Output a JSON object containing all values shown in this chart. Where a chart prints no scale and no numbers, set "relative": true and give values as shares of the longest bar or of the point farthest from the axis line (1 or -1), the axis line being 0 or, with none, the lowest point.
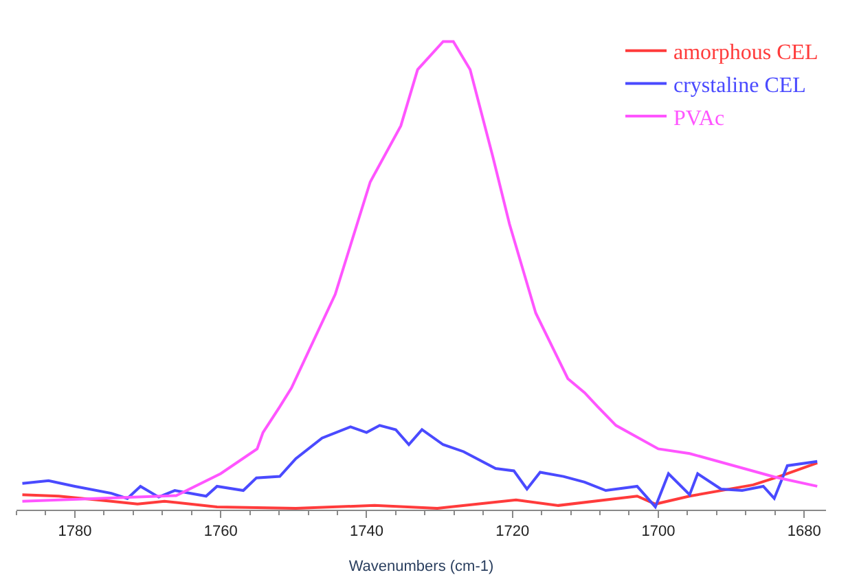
{
  "chart_data": {
    "type": "line",
    "relative": true,
    "xlabel": "Wavenumbers (cm-1)",
    "xlim": [
      1788,
      1677
    ],
    "xticks": [
      1780,
      1760,
      1740,
      1720,
      1700,
      1680
    ],
    "legend": "top right",
    "marker": "none",
    "line_style": "solid",
    "series": [
      {
        "name": "amorphous CEL",
        "color": "#ff3b3b",
        "x": [
          1787.2,
          1782.2,
          1775,
          1771.4,
          1767.7,
          1760.5,
          1749.7,
          1738.9,
          1730.3,
          1719.5,
          1713.7,
          1702.9,
          1700.4,
          1695.7,
          1687,
          1683.4,
          1678.2
        ],
        "values": [
          0.032,
          0.029,
          0.018,
          0.012,
          0.018,
          0.006,
          0.003,
          0.009,
          0.003,
          0.021,
          0.009,
          0.029,
          0.012,
          0.029,
          0.053,
          0.071,
          0.1
        ]
      },
      {
        "name": "crystaline CEL",
        "color": "#4a4aff",
        "x": [
          1787.2,
          1783.6,
          1780,
          1775,
          1772.8,
          1771,
          1768.5,
          1766.3,
          1762,
          1760.5,
          1756.9,
          1755.1,
          1751.9,
          1749.7,
          1746.1,
          1742.2,
          1740,
          1738.2,
          1736,
          1734.2,
          1732.4,
          1729.5,
          1726.7,
          1722.3,
          1719.8,
          1718,
          1716.2,
          1713,
          1710.1,
          1707.2,
          1702.9,
          1700.4,
          1698.6,
          1695.7,
          1694.6,
          1691.4,
          1688.5,
          1685.6,
          1684.1,
          1682.3,
          1678.2
        ],
        "values": [
          0.056,
          0.062,
          0.05,
          0.035,
          0.024,
          0.05,
          0.027,
          0.041,
          0.029,
          0.05,
          0.041,
          0.068,
          0.071,
          0.109,
          0.153,
          0.177,
          0.165,
          0.18,
          0.171,
          0.139,
          0.171,
          0.139,
          0.124,
          0.088,
          0.083,
          0.044,
          0.08,
          0.071,
          0.059,
          0.041,
          0.05,
          0.006,
          0.077,
          0.032,
          0.077,
          0.044,
          0.041,
          0.05,
          0.024,
          0.094,
          0.103
        ]
      },
      {
        "name": "PVAc",
        "color": "#ff55ff",
        "x": [
          1787.2,
          1771.4,
          1766.1,
          1760,
          1755,
          1754.2,
          1751.9,
          1750.3,
          1744.3,
          1739.5,
          1735.3,
          1733,
          1729.5,
          1728.1,
          1725.8,
          1722.7,
          1720.4,
          1716.8,
          1712.4,
          1710.1,
          1708.3,
          1705.8,
          1700,
          1695.7,
          1684.1,
          1678.2
        ],
        "values": [
          0.018,
          0.027,
          0.03,
          0.077,
          0.13,
          0.165,
          0.22,
          0.26,
          0.46,
          0.7,
          0.82,
          0.94,
          1.0,
          1.0,
          0.94,
          0.755,
          0.61,
          0.42,
          0.28,
          0.25,
          0.22,
          0.18,
          0.13,
          0.12,
          0.07,
          0.05
        ]
      }
    ]
  }
}
